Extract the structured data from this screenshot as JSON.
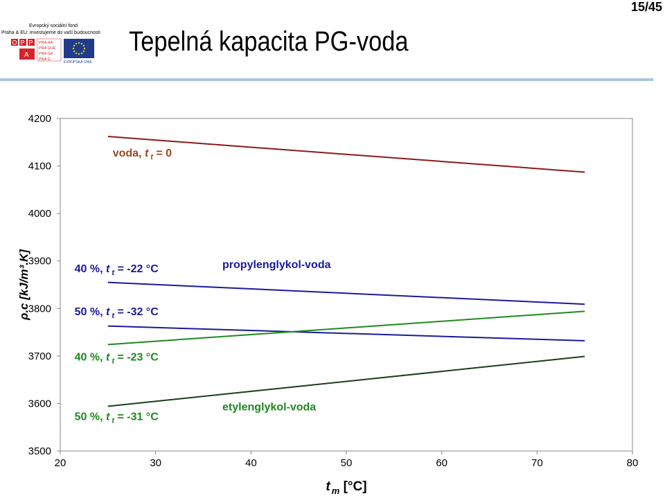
{
  "header": {
    "title": "Tepelná kapacita PG-voda",
    "page_number": "15/45",
    "logo": {
      "line1": "Evropský sociální fond",
      "line2": "Praha & EU: Investujeme do vaší budoucnosti",
      "opp_letters": [
        "O",
        "P",
        "P",
        "A"
      ],
      "praha_rows": [
        "PRA HA",
        "PRA GUE",
        "PRA GA",
        "PRA G"
      ],
      "eu_caption": "EVROPSKÁ UNIE",
      "colors": {
        "red": "#d8232a",
        "blue": "#1f3c8c",
        "eu_gold": "#ffcc00"
      }
    }
  },
  "chart_data": {
    "type": "line",
    "xlabel_main": "t",
    "xlabel_sub": "m",
    "xlabel_unit": " [°C]",
    "ylabel": "ρ.c [kJ/m³.K]",
    "xlim": [
      20,
      80
    ],
    "ylim": [
      3500,
      4200
    ],
    "xticks": [
      20,
      30,
      40,
      50,
      60,
      70,
      80
    ],
    "yticks": [
      3500,
      3600,
      3700,
      3800,
      3900,
      4000,
      4100,
      4200
    ],
    "grid": false,
    "series": [
      {
        "key": "voda",
        "color": "#8b1a1a",
        "x": [
          25,
          75
        ],
        "y": [
          4162,
          4087
        ]
      },
      {
        "key": "pg40",
        "color": "#1a1a9c",
        "x": [
          25,
          75
        ],
        "y": [
          3855,
          3809
        ]
      },
      {
        "key": "pg50",
        "color": "#1a1a9c",
        "x": [
          25,
          75
        ],
        "y": [
          3763,
          3732
        ]
      },
      {
        "key": "eg40",
        "color": "#1e8a1e",
        "x": [
          25,
          75
        ],
        "y": [
          3724,
          3794
        ]
      },
      {
        "key": "eg50",
        "color": "#1a3d1a",
        "x": [
          25,
          75
        ],
        "y": [
          3594,
          3699
        ]
      }
    ],
    "annotations": [
      {
        "key": "voda",
        "pre": "voda, ",
        "t": "t",
        "sub": "t",
        "post": " = 0",
        "color": "#a0451e",
        "x": 25.5,
        "y": 4120
      },
      {
        "key": "pg40",
        "pre": "40 %, ",
        "t": "t",
        "sub": "t",
        "post": " = -22 °C",
        "color": "#1a1a9c",
        "x": 21.5,
        "y": 3876
      },
      {
        "key": "pg50",
        "pre": "50 %, ",
        "t": "t",
        "sub": "t",
        "post": " = -32 °C",
        "color": "#1a1a9c",
        "x": 21.5,
        "y": 3786
      },
      {
        "key": "eg40",
        "pre": "40 %, ",
        "t": "t",
        "sub": "t",
        "post": " = -23 °C",
        "color": "#1e8a1e",
        "x": 21.5,
        "y": 3690
      },
      {
        "key": "eg50",
        "pre": "50 %, ",
        "t": "t",
        "sub": "t",
        "post": " = -31 °C",
        "color": "#1e8a1e",
        "x": 21.5,
        "y": 3565
      },
      {
        "key": "pg-label",
        "pre": "propylenglykol-voda",
        "color": "#1a1a9c",
        "x": 37,
        "y": 3885
      },
      {
        "key": "eg-label",
        "pre": "etylenglykol-voda",
        "color": "#1e8a1e",
        "x": 37,
        "y": 3585
      }
    ]
  }
}
